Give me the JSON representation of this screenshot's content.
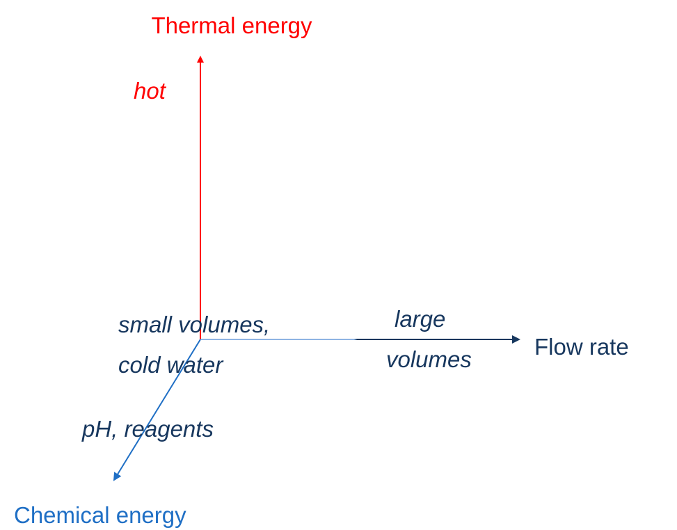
{
  "axes": {
    "thermal": {
      "label": "Thermal energy",
      "annotation": "hot"
    },
    "flow": {
      "label": "Flow rate",
      "annotation": [
        "large",
        "volumes"
      ]
    },
    "chemical": {
      "label": "Chemical energy",
      "annotation": "pH, reagents"
    }
  },
  "origin": {
    "annotation": [
      "small volumes,",
      "cold water"
    ]
  }
}
